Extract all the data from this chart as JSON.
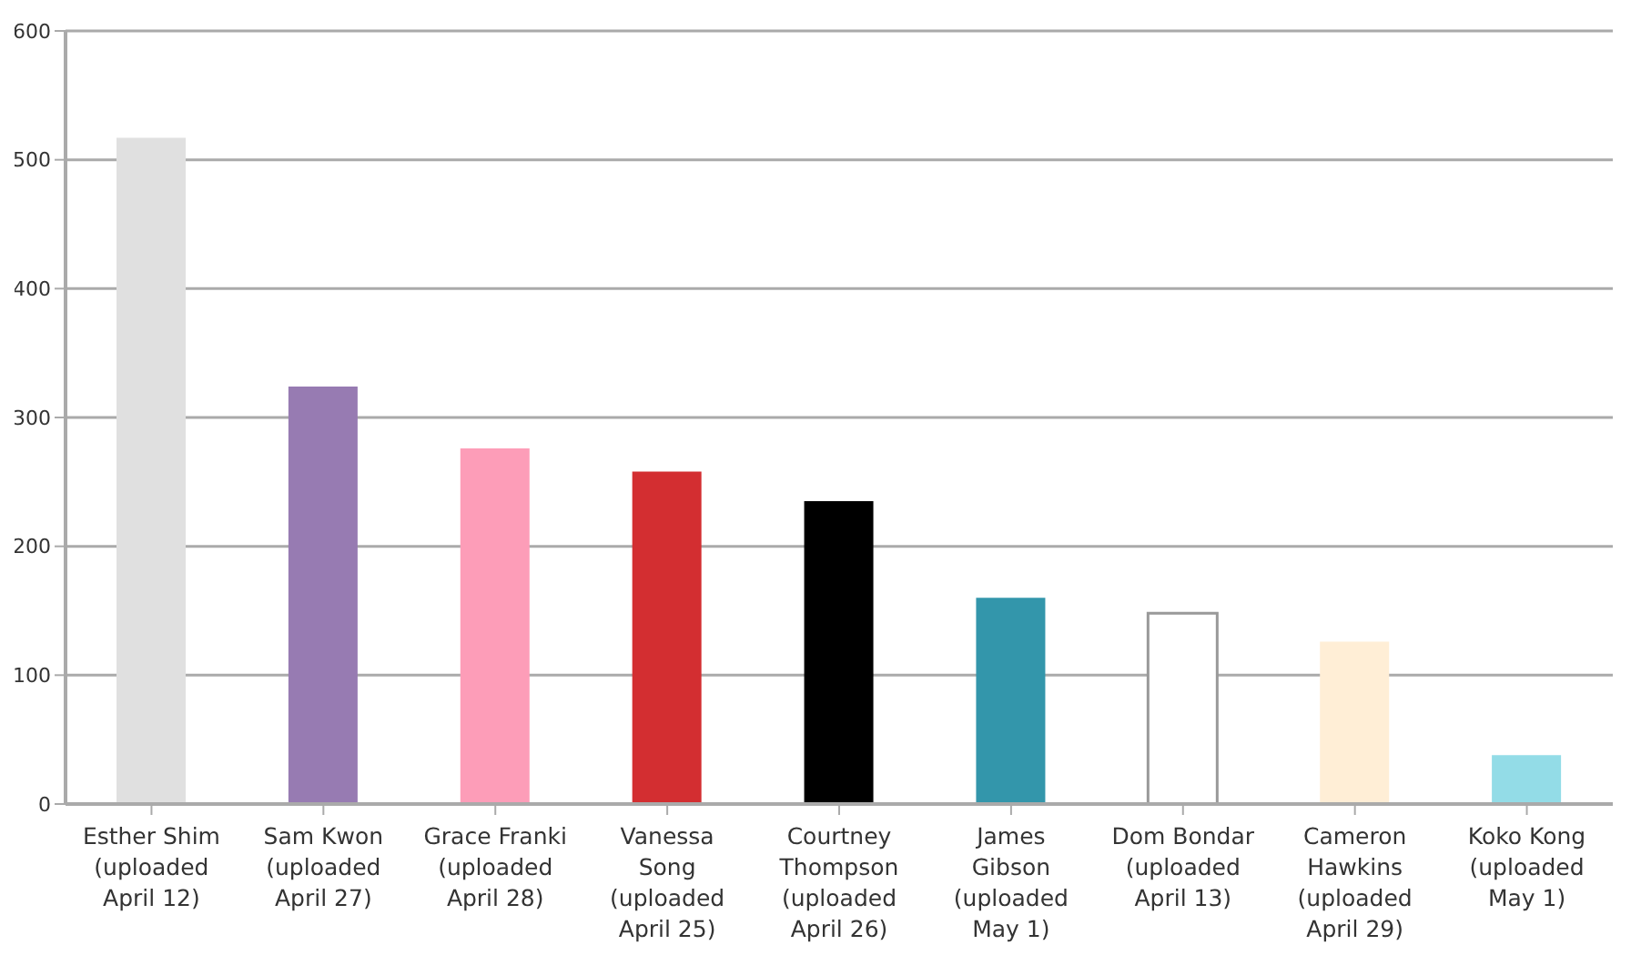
{
  "chart_data": {
    "type": "bar",
    "categories": [
      "Esther Shim\n(uploaded\nApril 12)",
      "Sam Kwon\n(uploaded\nApril 27)",
      "Grace Franki\n(uploaded\nApril 28)",
      "Vanessa\nSong\n(uploaded\nApril 25)",
      "Courtney\nThompson\n(uploaded\nApril 26)",
      "James\nGibson\n(uploaded\nMay 1)",
      "Dom Bondar\n(uploaded\nApril 13)",
      "Cameron\nHawkins\n(uploaded\nApril 29)",
      "Koko Kong\n(uploaded\nMay 1)"
    ],
    "values": [
      517,
      324,
      276,
      258,
      235,
      160,
      148,
      126,
      38
    ],
    "colors": [
      "#e0e0e0",
      "#977bb2",
      "#fd9db8",
      "#d32e31",
      "#000000",
      "#3396ab",
      "#ffffff",
      "#ffeed6",
      "#93dce7"
    ],
    "ylim": [
      0,
      600
    ],
    "yticks": [
      0,
      100,
      200,
      300,
      400,
      500,
      600
    ],
    "grid": "y"
  }
}
